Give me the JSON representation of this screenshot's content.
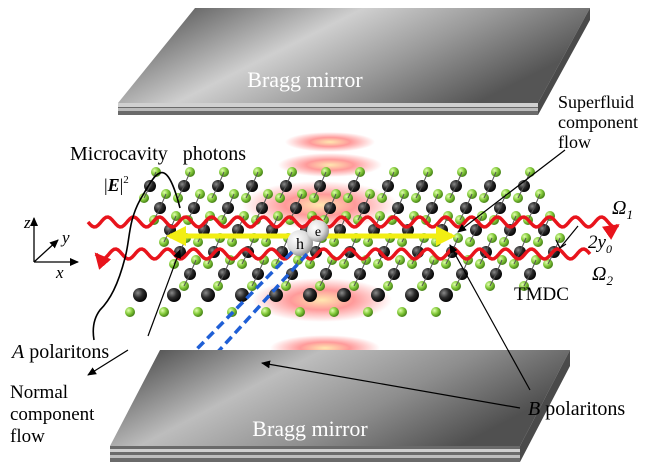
{
  "labels": {
    "top_mirror": "Bragg mirror",
    "bottom_mirror": "Bragg mirror",
    "microcavity": "Microcavity   photons",
    "field_prefix": "|",
    "field_E": "E",
    "field_suffix": "|",
    "field_sup": "2",
    "superfluid_line1": "Superfluid",
    "superfluid_line2": "component",
    "superfluid_line3": "flow",
    "omega1": "Ω",
    "omega1_sub": "1",
    "omega2": "Ω",
    "omega2_sub": "2",
    "spacing": "2y",
    "spacing_sub": "0",
    "tmdc": "TMDC",
    "a_polaritons_italic": "A",
    "a_polaritons_rest": " polaritons",
    "b_polaritons_italic": "B",
    "b_polaritons_rest": " polaritons",
    "normal_line1": "Normal",
    "normal_line2": "component",
    "normal_line3": "flow",
    "axis_z": "z",
    "axis_y": "y",
    "axis_x": "x",
    "hole": "h",
    "electron": "e"
  },
  "colors": {
    "wave_red": "#e8141c",
    "arrow_yellow": "#f2ee12",
    "arrow_blue": "#1f5fd6",
    "atom_green": "#7fc43a",
    "atom_black": "#1a1a1a",
    "mirror_gray": "#8a8a8a"
  }
}
